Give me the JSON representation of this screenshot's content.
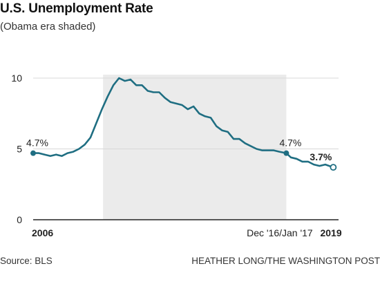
{
  "title": "U.S. Unemployment Rate",
  "subtitle": "(Obama era shaded)",
  "source": "Source: BLS",
  "credit": "HEATHER LONG/THE WASHINGTON POST",
  "colors": {
    "line": "#1f6e82",
    "shade": "#ebebeb",
    "axis": "#222222",
    "grid": "#d8d8d8"
  },
  "chart_data": {
    "type": "line",
    "title": "U.S. Unemployment Rate",
    "subtitle": "(Obama era shaded)",
    "xlim": [
      2006.0,
      2019.33
    ],
    "ylim": [
      0,
      10
    ],
    "yticks": [
      0,
      5,
      10
    ],
    "xtick_labels": [
      {
        "x": 2006.0,
        "label": "2006",
        "bold": true
      },
      {
        "x": 2017.0,
        "label": "Dec '16/Jan '17",
        "bold": false
      },
      {
        "x": 2019.0,
        "label": "2019",
        "bold": true
      }
    ],
    "shaded_region": [
      2009.05,
      2017.05
    ],
    "annotations": [
      {
        "x": 2006.0,
        "y": 4.7,
        "label": "4.7%",
        "bold": false,
        "marker": "filled"
      },
      {
        "x": 2017.05,
        "y": 4.7,
        "label": "4.7%",
        "bold": false,
        "marker": "filled"
      },
      {
        "x": 2019.1,
        "y": 3.7,
        "label": "3.7%",
        "bold": true,
        "marker": "open"
      }
    ],
    "series": [
      {
        "x": [
          2006.0,
          2006.25,
          2006.5,
          2006.75,
          2007.0,
          2007.25,
          2007.5,
          2007.75,
          2008.0,
          2008.25,
          2008.5,
          2008.75,
          2009.0,
          2009.25,
          2009.5,
          2009.75,
          2010.0,
          2010.25,
          2010.5,
          2010.75,
          2011.0,
          2011.25,
          2011.5,
          2011.75,
          2012.0,
          2012.25,
          2012.5,
          2012.75,
          2013.0,
          2013.25,
          2013.5,
          2013.75,
          2014.0,
          2014.25,
          2014.5,
          2014.75,
          2015.0,
          2015.25,
          2015.5,
          2015.75,
          2016.0,
          2016.25,
          2016.5,
          2016.75,
          2017.05,
          2017.25,
          2017.5,
          2017.75,
          2018.0,
          2018.25,
          2018.5,
          2018.75,
          2019.1
        ],
        "y": [
          4.7,
          4.7,
          4.6,
          4.5,
          4.6,
          4.5,
          4.7,
          4.8,
          5.0,
          5.3,
          5.8,
          6.8,
          7.8,
          8.7,
          9.5,
          10.0,
          9.8,
          9.9,
          9.5,
          9.5,
          9.1,
          9.0,
          9.0,
          8.6,
          8.3,
          8.2,
          8.1,
          7.8,
          8.0,
          7.5,
          7.3,
          7.2,
          6.6,
          6.3,
          6.2,
          5.7,
          5.7,
          5.4,
          5.2,
          5.0,
          4.9,
          4.9,
          4.9,
          4.8,
          4.7,
          4.4,
          4.3,
          4.1,
          4.1,
          3.9,
          3.8,
          3.9,
          3.7
        ]
      }
    ]
  }
}
